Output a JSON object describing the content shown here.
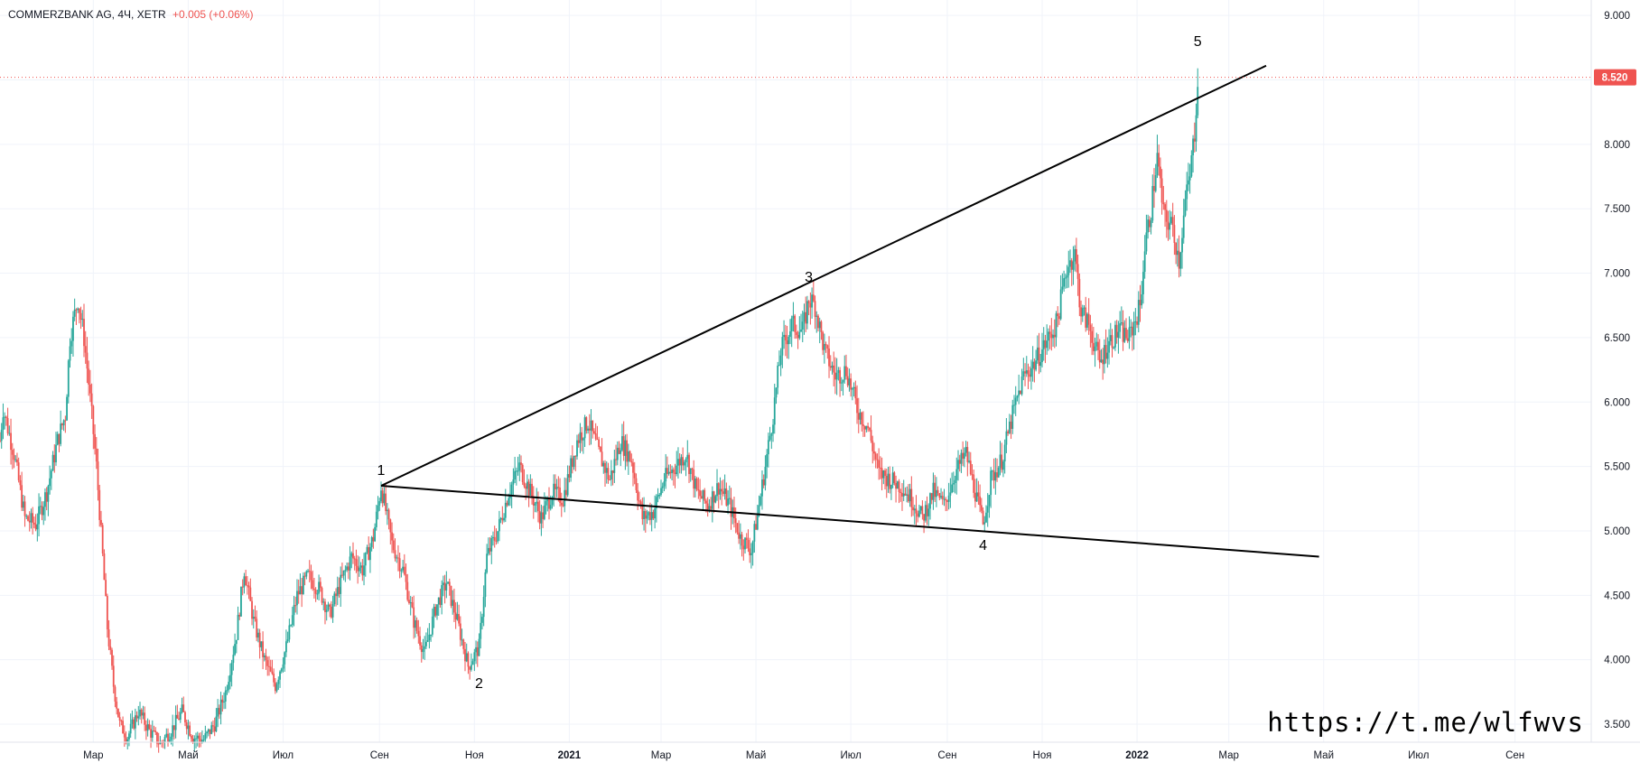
{
  "legend": {
    "symbol": "COMMERZBANK AG, 4Ч, XETR",
    "change": "+0.005 (+0.06%)"
  },
  "watermark": "https://t.me/wlfwvs",
  "colors": {
    "up": "#26a69a",
    "down": "#ef5350",
    "grid": "#f0f3fa",
    "price_label_bg": "#ef5350",
    "trendline": "#000000"
  },
  "chart_data": {
    "type": "candlestick",
    "y_axis": {
      "ticks": [
        "9.000",
        "8.500",
        "8.000",
        "7.500",
        "7.000",
        "6.500",
        "6.000",
        "5.500",
        "5.000",
        "4.500",
        "4.000",
        "3.500"
      ],
      "tick_values": [
        9.0,
        8.5,
        8.0,
        7.5,
        7.0,
        6.5,
        6.0,
        5.5,
        5.0,
        4.5,
        4.0,
        3.5
      ],
      "range": [
        3.36,
        9.12
      ],
      "position": "right"
    },
    "x_axis": {
      "labels": [
        "Мар",
        "Май",
        "Июл",
        "Сен",
        "Ноя",
        "2021",
        "Мар",
        "Май",
        "Июл",
        "Сен",
        "Ноя",
        "2022",
        "Мар",
        "Май",
        "Июл",
        "Сен"
      ],
      "bold": [
        false,
        false,
        false,
        false,
        false,
        true,
        false,
        false,
        false,
        false,
        false,
        true,
        false,
        false,
        false,
        false
      ],
      "tick_dates": [
        "2020-03-01",
        "2020-05-01",
        "2020-07-01",
        "2020-09-01",
        "2020-11-01",
        "2021-01-01",
        "2021-03-01",
        "2021-05-01",
        "2021-07-01",
        "2021-09-01",
        "2021-11-01",
        "2022-01-01",
        "2022-03-01",
        "2022-05-01",
        "2022-07-01",
        "2022-09-01"
      ],
      "range": [
        "2020-01-01",
        "2022-10-20"
      ]
    },
    "last_price": {
      "value": 8.52,
      "label": "8.520"
    },
    "price_path": [
      [
        "2020-01-01",
        5.7
      ],
      [
        "2020-01-03",
        5.95
      ],
      [
        "2020-01-10",
        5.6
      ],
      [
        "2020-01-17",
        5.1
      ],
      [
        "2020-01-24",
        5.05
      ],
      [
        "2020-01-31",
        5.3
      ],
      [
        "2020-02-07",
        5.7
      ],
      [
        "2020-02-12",
        5.9
      ],
      [
        "2020-02-15",
        6.5
      ],
      [
        "2020-02-20",
        6.8
      ],
      [
        "2020-02-24",
        6.5
      ],
      [
        "2020-02-27",
        6.15
      ],
      [
        "2020-03-03",
        5.5
      ],
      [
        "2020-03-07",
        4.8
      ],
      [
        "2020-03-10",
        4.25
      ],
      [
        "2020-03-14",
        3.8
      ],
      [
        "2020-03-18",
        3.5
      ],
      [
        "2020-03-23",
        3.4
      ],
      [
        "2020-03-30",
        3.6
      ],
      [
        "2020-04-06",
        3.45
      ],
      [
        "2020-04-13",
        3.35
      ],
      [
        "2020-04-20",
        3.45
      ],
      [
        "2020-04-27",
        3.6
      ],
      [
        "2020-05-04",
        3.4
      ],
      [
        "2020-05-11",
        3.38
      ],
      [
        "2020-05-18",
        3.5
      ],
      [
        "2020-05-25",
        3.75
      ],
      [
        "2020-06-01",
        4.2
      ],
      [
        "2020-06-06",
        4.7
      ],
      [
        "2020-06-12",
        4.3
      ],
      [
        "2020-06-19",
        4.0
      ],
      [
        "2020-06-26",
        3.8
      ],
      [
        "2020-07-03",
        4.1
      ],
      [
        "2020-07-10",
        4.5
      ],
      [
        "2020-07-17",
        4.65
      ],
      [
        "2020-07-24",
        4.55
      ],
      [
        "2020-07-31",
        4.35
      ],
      [
        "2020-08-07",
        4.6
      ],
      [
        "2020-08-14",
        4.8
      ],
      [
        "2020-08-21",
        4.7
      ],
      [
        "2020-08-28",
        4.95
      ],
      [
        "2020-09-02",
        5.35
      ],
      [
        "2020-09-09",
        4.9
      ],
      [
        "2020-09-16",
        4.7
      ],
      [
        "2020-09-23",
        4.3
      ],
      [
        "2020-09-30",
        4.05
      ],
      [
        "2020-10-07",
        4.4
      ],
      [
        "2020-10-14",
        4.6
      ],
      [
        "2020-10-21",
        4.3
      ],
      [
        "2020-10-28",
        3.95
      ],
      [
        "2020-11-04",
        4.1
      ],
      [
        "2020-11-09",
        4.8
      ],
      [
        "2020-11-16",
        5.0
      ],
      [
        "2020-11-23",
        5.3
      ],
      [
        "2020-11-30",
        5.5
      ],
      [
        "2020-12-07",
        5.3
      ],
      [
        "2020-12-14",
        5.1
      ],
      [
        "2020-12-21",
        5.3
      ],
      [
        "2020-12-28",
        5.25
      ],
      [
        "2021-01-06",
        5.7
      ],
      [
        "2021-01-13",
        5.85
      ],
      [
        "2021-01-20",
        5.6
      ],
      [
        "2021-01-27",
        5.4
      ],
      [
        "2021-02-03",
        5.7
      ],
      [
        "2021-02-10",
        5.55
      ],
      [
        "2021-02-17",
        5.1
      ],
      [
        "2021-02-24",
        5.15
      ],
      [
        "2021-03-03",
        5.4
      ],
      [
        "2021-03-10",
        5.5
      ],
      [
        "2021-03-17",
        5.6
      ],
      [
        "2021-03-24",
        5.3
      ],
      [
        "2021-03-31",
        5.2
      ],
      [
        "2021-04-07",
        5.35
      ],
      [
        "2021-04-14",
        5.2
      ],
      [
        "2021-04-21",
        4.95
      ],
      [
        "2021-04-28",
        4.85
      ],
      [
        "2021-05-03",
        5.2
      ],
      [
        "2021-05-07",
        5.5
      ],
      [
        "2021-05-12",
        5.9
      ],
      [
        "2021-05-17",
        6.4
      ],
      [
        "2021-05-24",
        6.6
      ],
      [
        "2021-05-31",
        6.55
      ],
      [
        "2021-06-04",
        6.8
      ],
      [
        "2021-06-08",
        6.75
      ],
      [
        "2021-06-14",
        6.4
      ],
      [
        "2021-06-21",
        6.2
      ],
      [
        "2021-06-28",
        6.25
      ],
      [
        "2021-07-05",
        5.95
      ],
      [
        "2021-07-12",
        5.8
      ],
      [
        "2021-07-19",
        5.45
      ],
      [
        "2021-07-26",
        5.4
      ],
      [
        "2021-08-02",
        5.35
      ],
      [
        "2021-08-09",
        5.25
      ],
      [
        "2021-08-16",
        5.1
      ],
      [
        "2021-08-23",
        5.3
      ],
      [
        "2021-08-30",
        5.2
      ],
      [
        "2021-09-06",
        5.45
      ],
      [
        "2021-09-13",
        5.6
      ],
      [
        "2021-09-20",
        5.25
      ],
      [
        "2021-09-24",
        5.05
      ],
      [
        "2021-09-29",
        5.4
      ],
      [
        "2021-10-06",
        5.55
      ],
      [
        "2021-10-13",
        5.9
      ],
      [
        "2021-10-20",
        6.2
      ],
      [
        "2021-10-27",
        6.3
      ],
      [
        "2021-11-03",
        6.45
      ],
      [
        "2021-11-10",
        6.6
      ],
      [
        "2021-11-17",
        7.05
      ],
      [
        "2021-11-22",
        7.15
      ],
      [
        "2021-11-26",
        6.7
      ],
      [
        "2021-12-01",
        6.6
      ],
      [
        "2021-12-08",
        6.3
      ],
      [
        "2021-12-13",
        6.45
      ],
      [
        "2021-12-20",
        6.55
      ],
      [
        "2021-12-27",
        6.5
      ],
      [
        "2022-01-03",
        6.75
      ],
      [
        "2022-01-06",
        7.2
      ],
      [
        "2022-01-10",
        7.5
      ],
      [
        "2022-01-14",
        7.9
      ],
      [
        "2022-01-18",
        7.45
      ],
      [
        "2022-01-24",
        7.35
      ],
      [
        "2022-01-28",
        7.1
      ],
      [
        "2022-02-01",
        7.55
      ],
      [
        "2022-02-04",
        7.75
      ],
      [
        "2022-02-07",
        8.1
      ],
      [
        "2022-02-09",
        8.52
      ]
    ],
    "annotations": [
      {
        "label": "1",
        "date": "2020-09-02",
        "price": 5.35,
        "placement": "above"
      },
      {
        "label": "2",
        "date": "2020-11-04",
        "price": 3.95,
        "placement": "below"
      },
      {
        "label": "3",
        "date": "2021-06-04",
        "price": 6.85,
        "placement": "above"
      },
      {
        "label": "4",
        "date": "2021-09-24",
        "price": 5.02,
        "placement": "below"
      },
      {
        "label": "5",
        "date": "2022-02-09",
        "price": 8.68,
        "placement": "above"
      }
    ],
    "trendlines": [
      {
        "from": [
          "2020-09-02",
          5.35
        ],
        "to": [
          "2022-03-25",
          8.61
        ]
      },
      {
        "from": [
          "2020-09-02",
          5.35
        ],
        "to": [
          "2022-04-28",
          4.8
        ]
      }
    ]
  }
}
